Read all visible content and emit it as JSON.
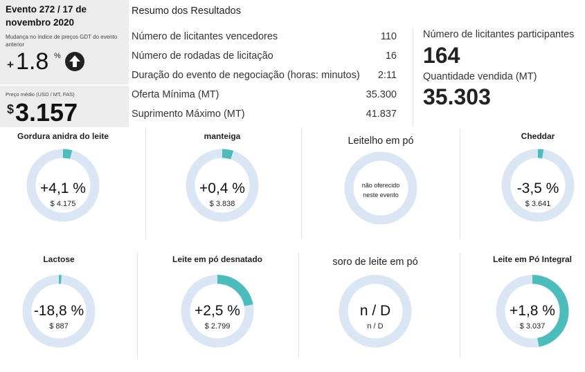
{
  "event": {
    "title": "Evento 272 / 17 de novembro 2020",
    "change_label": "Mudança no índice de preços GDT do evento anterior",
    "change_sign": "+",
    "change_value": "1.8",
    "change_unit": "%",
    "change_icon": "up-arrow-icon",
    "price_label": "Preço médio (USD / MT, FAS)",
    "price_currency": "$",
    "price_value": "3.157"
  },
  "summary": {
    "title": "Resumo dos Resultados",
    "rows": [
      {
        "label": "Número de licitantes vencedores",
        "value": "110"
      },
      {
        "label": "Número de rodadas de licitação",
        "value": "16"
      },
      {
        "label": "Duração do evento de negociação (horas: minutos)",
        "value": "2:11"
      },
      {
        "label": "Oferta Mínima (MT)",
        "value": "35.300"
      },
      {
        "label": "Suprimento Máximo (MT)",
        "value": "41.837"
      }
    ],
    "participants_label": "Número de licitantes participantes",
    "participants_value": "164",
    "sold_label": "Quantidade vendida (MT)",
    "sold_value": "35.303"
  },
  "colors": {
    "ring_bg": "#dbe6f4",
    "ring_fill": "#4cbdbd",
    "panel_bg": "#ececec"
  },
  "products": [
    {
      "name": "Gordura anidra do leite",
      "change": "+4,1 %",
      "price": "$ 4.175",
      "fill": 0.041
    },
    {
      "name": "manteiga",
      "change": "+0,4 %",
      "price": "$ 3.838",
      "fill": 0.05
    },
    {
      "name": "Leitelho em pó",
      "note1": "não oferecido",
      "note2": "neste evento"
    },
    {
      "name": "Cheddar",
      "change": "-3,5 %",
      "price": "$ 3.641",
      "fill": 0.025
    },
    {
      "name": "Lactose",
      "change": "-18,8 %",
      "price": "$ 887",
      "fill": 0.012
    },
    {
      "name": "Leite em pó desnatado",
      "change": "+2,5 %",
      "price": "$ 2.799",
      "fill": 0.22
    },
    {
      "name": "soro de leite em pó",
      "change": "n / D",
      "price": "n / D"
    },
    {
      "name": "Leite em Pó Integral",
      "change": "+1,8 %",
      "price": "$ 3.037",
      "fill": 0.47
    }
  ]
}
